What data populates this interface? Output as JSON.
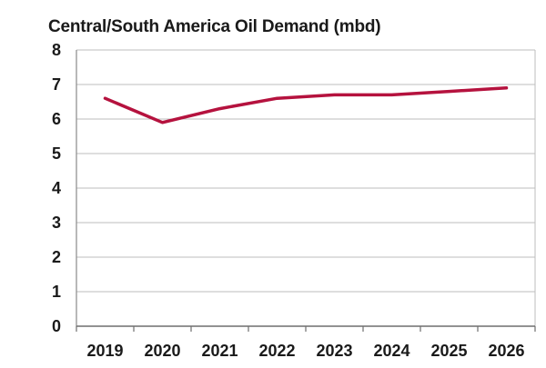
{
  "chart_data": {
    "type": "line",
    "title": "Central/South America Oil Demand (mbd)",
    "xlabel": "",
    "ylabel": "",
    "categories": [
      "2019",
      "2020",
      "2021",
      "2022",
      "2023",
      "2024",
      "2025",
      "2026"
    ],
    "series": [
      {
        "values": [
          6.6,
          5.9,
          6.3,
          6.6,
          6.7,
          6.7,
          6.8,
          6.9
        ],
        "color": "#b5123e"
      }
    ],
    "ylim": [
      0,
      8
    ],
    "yticks": [
      0,
      1,
      2,
      3,
      4,
      5,
      6,
      7,
      8
    ],
    "grid": true,
    "legend": "none"
  }
}
